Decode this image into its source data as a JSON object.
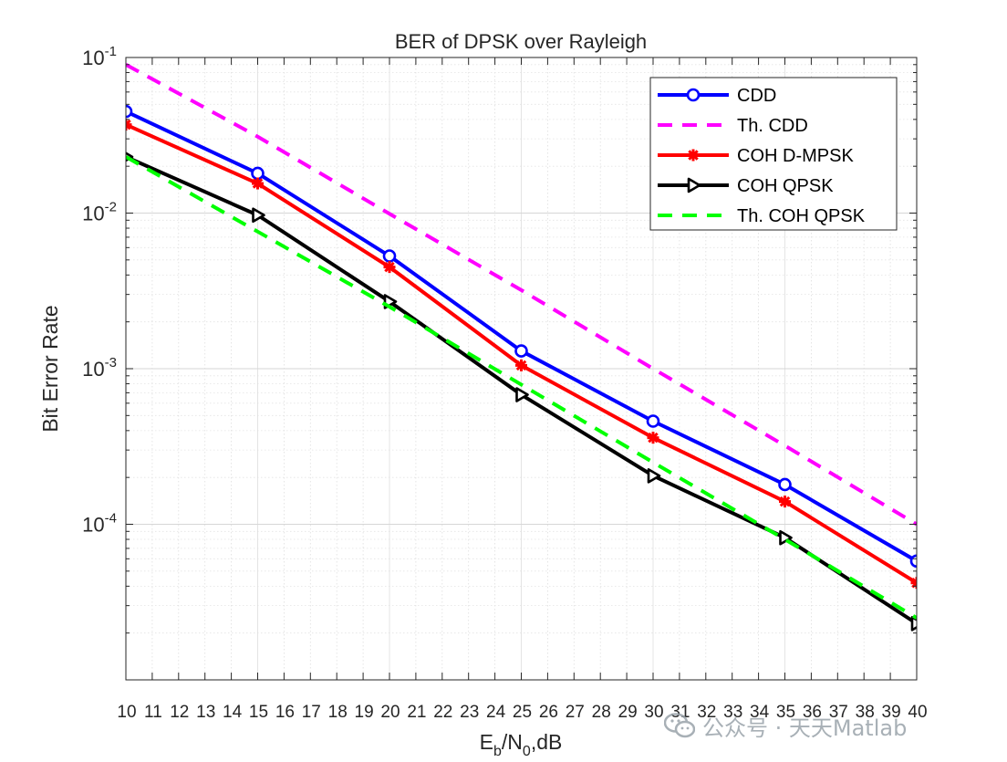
{
  "chart_data": {
    "type": "line",
    "title": "BER of DPSK over Rayleigh",
    "xlabel": {
      "base": "E",
      "sub1": "b",
      "mid": "/N",
      "sub2": "0",
      "tail": ",dB"
    },
    "ylabel": "Bit Error Rate",
    "xlim": [
      10,
      40
    ],
    "ylim": [
      1e-05,
      0.1
    ],
    "yscale": "log",
    "grid": true,
    "minor_grid": true,
    "legend_position": "top-right",
    "x_tick_labels": [
      "10",
      "11",
      "12",
      "13",
      "14",
      "15",
      "16",
      "17",
      "18",
      "19",
      "20",
      "21",
      "22",
      "23",
      "24",
      "25",
      "26",
      "27",
      "28",
      "29",
      "30",
      "31",
      "32",
      "33",
      "34",
      "35",
      "36",
      "37",
      "38",
      "39",
      "40"
    ],
    "y_tick_labels": [
      {
        "value": 0.1,
        "base": "10",
        "exp": "-1"
      },
      {
        "value": 0.01,
        "base": "10",
        "exp": "-2"
      },
      {
        "value": 0.001,
        "base": "10",
        "exp": "-3"
      },
      {
        "value": 0.0001,
        "base": "10",
        "exp": "-4"
      }
    ],
    "series": [
      {
        "name": "CDD",
        "color": "#0000ff",
        "dash": "solid",
        "marker": "circle",
        "x": [
          10,
          15,
          20,
          25,
          30,
          35,
          40
        ],
        "y": [
          0.045,
          0.018,
          0.0053,
          0.0013,
          0.00046,
          0.00018,
          5.8e-05
        ]
      },
      {
        "name": "Th. CDD",
        "color": "#ff00ff",
        "dash": "dashed",
        "marker": "none",
        "x": [
          10,
          15,
          20,
          25,
          30,
          35,
          40
        ],
        "y": [
          0.09,
          0.031,
          0.0099,
          0.0032,
          0.001,
          0.00032,
          0.0001
        ]
      },
      {
        "name": "COH D-MPSK",
        "color": "#ff0000",
        "dash": "solid",
        "marker": "asterisk",
        "x": [
          10,
          15,
          20,
          25,
          30,
          35,
          40
        ],
        "y": [
          0.037,
          0.0155,
          0.0045,
          0.00105,
          0.00036,
          0.00014,
          4.2e-05
        ]
      },
      {
        "name": "COH QPSK",
        "color": "#000000",
        "dash": "solid",
        "marker": "triangle-right",
        "x": [
          10,
          15,
          20,
          25,
          30,
          35,
          40
        ],
        "y": [
          0.023,
          0.0097,
          0.0027,
          0.00068,
          0.000205,
          8.2e-05,
          2.3e-05
        ]
      },
      {
        "name": "Th. COH QPSK",
        "color": "#00ff00",
        "dash": "dashed",
        "marker": "none",
        "x": [
          10,
          15,
          20,
          25,
          30,
          35,
          40
        ],
        "y": [
          0.023,
          0.0076,
          0.0025,
          0.00079,
          0.00025,
          8e-05,
          2.5e-05
        ]
      }
    ]
  },
  "watermark": {
    "text": "公众号 · 天天Matlab",
    "icon": "wechat-icon"
  }
}
